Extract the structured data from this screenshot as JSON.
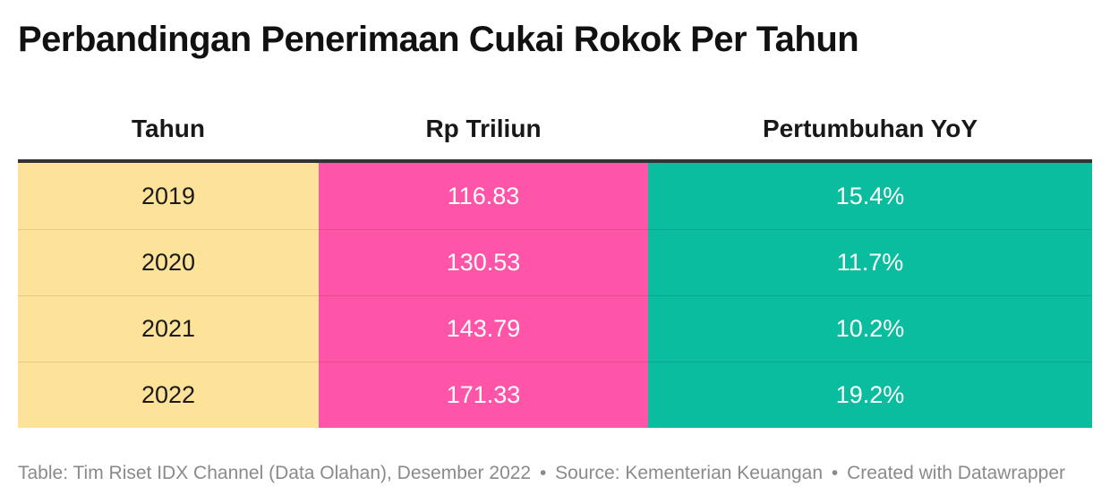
{
  "title": "Perbandingan Penerimaan Cukai Rokok Per Tahun",
  "colors": {
    "year_column": "#fde29a",
    "value_column": "#ff55a8",
    "growth_column": "#0abd9f",
    "header_rule": "#333333"
  },
  "chart_data": {
    "type": "table",
    "title": "Perbandingan Penerimaan Cukai Rokok Per Tahun",
    "columns": [
      "Tahun",
      "Rp Triliun",
      "Pertumbuhan YoY"
    ],
    "rows": [
      [
        "2019",
        "116.83",
        "15.4%"
      ],
      [
        "2020",
        "130.53",
        "11.7%"
      ],
      [
        "2021",
        "143.79",
        "10.2%"
      ],
      [
        "2022",
        "171.33",
        "19.2%"
      ]
    ]
  },
  "footer": {
    "table_note": "Table: Tim Riset IDX Channel (Data Olahan), Desember 2022",
    "separator": "•",
    "source": "Source: Kementerian Keuangan",
    "credit": "Created with Datawrapper"
  }
}
